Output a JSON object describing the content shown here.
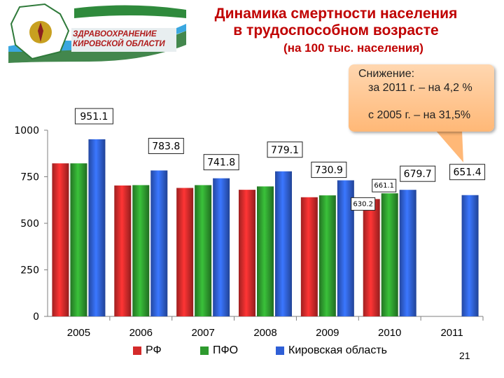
{
  "header": {
    "logo_line1": "ЗДРАВООХРАНЕНИЕ",
    "logo_line2": "КИРОВСКОЙ ОБЛАСТИ",
    "title_line1": "Динамика смертности населения",
    "title_line2": "в трудоспособном возрасте",
    "title_line3": "(на 100 тыс. населения)"
  },
  "callout": {
    "heading": "Снижение:",
    "row1": "за 2011 г. – на 4,2 %",
    "row2": "с 2005 г. – на 31,5%"
  },
  "colors": {
    "rf": "#d42a2a",
    "pfo": "#2e9a2e",
    "kirov": "#2f5fd6",
    "title": "#c00000"
  },
  "page_number": "21",
  "chart_data": {
    "type": "bar",
    "categories": [
      "2005",
      "2006",
      "2007",
      "2008",
      "2009",
      "2010",
      "2011"
    ],
    "ylim": [
      0,
      1000
    ],
    "yticks": [
      "0",
      "250",
      "500",
      "750",
      "1000"
    ],
    "series": [
      {
        "name": "РФ",
        "values": [
          822,
          703,
          690,
          680,
          640,
          630.2,
          null
        ]
      },
      {
        "name": "ПФО",
        "values": [
          822,
          705,
          705,
          698,
          650,
          661.1,
          null
        ]
      },
      {
        "name": "Кировская область",
        "values": [
          951.1,
          783.8,
          741.8,
          779.1,
          730.9,
          679.7,
          651.4
        ]
      }
    ],
    "data_labels": [
      {
        "text": "951.1",
        "category": "2005"
      },
      {
        "text": "783.8",
        "category": "2006"
      },
      {
        "text": "741.8",
        "category": "2007"
      },
      {
        "text": "779.1",
        "category": "2008"
      },
      {
        "text": "730.9",
        "category": "2009"
      },
      {
        "text": "630.2",
        "category": "2010"
      },
      {
        "text": "661.1",
        "category": "2010"
      },
      {
        "text": "679.7",
        "category": "2010"
      },
      {
        "text": "651.4",
        "category": "2011"
      }
    ],
    "legend_position": "bottom"
  }
}
